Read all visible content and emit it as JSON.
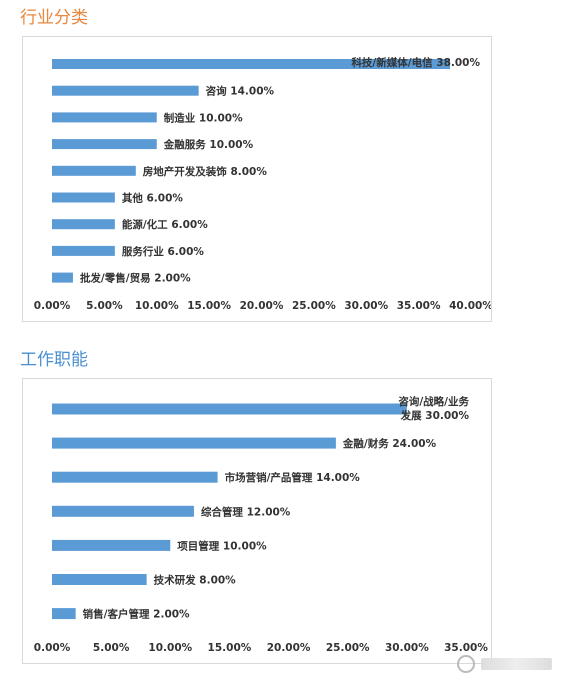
{
  "sections": [
    {
      "title": "行业分类"
    },
    {
      "title": "工作职能"
    }
  ],
  "chart_data": [
    {
      "type": "bar",
      "orientation": "horizontal",
      "title": "行业分类",
      "categories": [
        "科技/新媒体/电信",
        "咨询",
        "制造业",
        "金融服务",
        "房地产开发及装饰",
        "其他",
        "能源/化工",
        "服务行业",
        "批发/零售/贸易"
      ],
      "values": [
        38,
        14,
        10,
        10,
        8,
        6,
        6,
        6,
        2
      ],
      "data_labels": [
        "科技/新媒体/电信 38.00%",
        "咨询 14.00%",
        "制造业 10.00%",
        "金融服务 10.00%",
        "房地产开发及装饰 8.00%",
        "其他 6.00%",
        "能源/化工 6.00%",
        "服务行业 6.00%",
        "批发/零售/贸易 2.00%"
      ],
      "xlim": [
        0,
        40
      ],
      "xticks": [
        "0.00%",
        "5.00%",
        "10.00%",
        "15.00%",
        "20.00%",
        "25.00%",
        "30.00%",
        "35.00%",
        "40.00%"
      ],
      "bar_color": "#5b9bd5",
      "grid": false,
      "legend": "none"
    },
    {
      "type": "bar",
      "orientation": "horizontal",
      "title": "工作职能",
      "categories": [
        "咨询/战略/业务发展",
        "金融/财务",
        "市场营销/产品管理",
        "综合管理",
        "项目管理",
        "技术研发",
        "销售/客户管理"
      ],
      "values": [
        30,
        24,
        14,
        12,
        10,
        8,
        2
      ],
      "data_labels": [
        [
          "咨询/战略/业务",
          "发展 30.00%"
        ],
        "金融/财务 24.00%",
        "市场营销/产品管理 14.00%",
        "综合管理 12.00%",
        "项目管理 10.00%",
        "技术研发 8.00%",
        "销售/客户管理 2.00%"
      ],
      "xlim": [
        0,
        35
      ],
      "xticks": [
        "0.00%",
        "5.00%",
        "10.00%",
        "15.00%",
        "20.00%",
        "25.00%",
        "30.00%",
        "35.00%"
      ],
      "bar_color": "#5b9bd5",
      "grid": false,
      "legend": "none"
    }
  ]
}
